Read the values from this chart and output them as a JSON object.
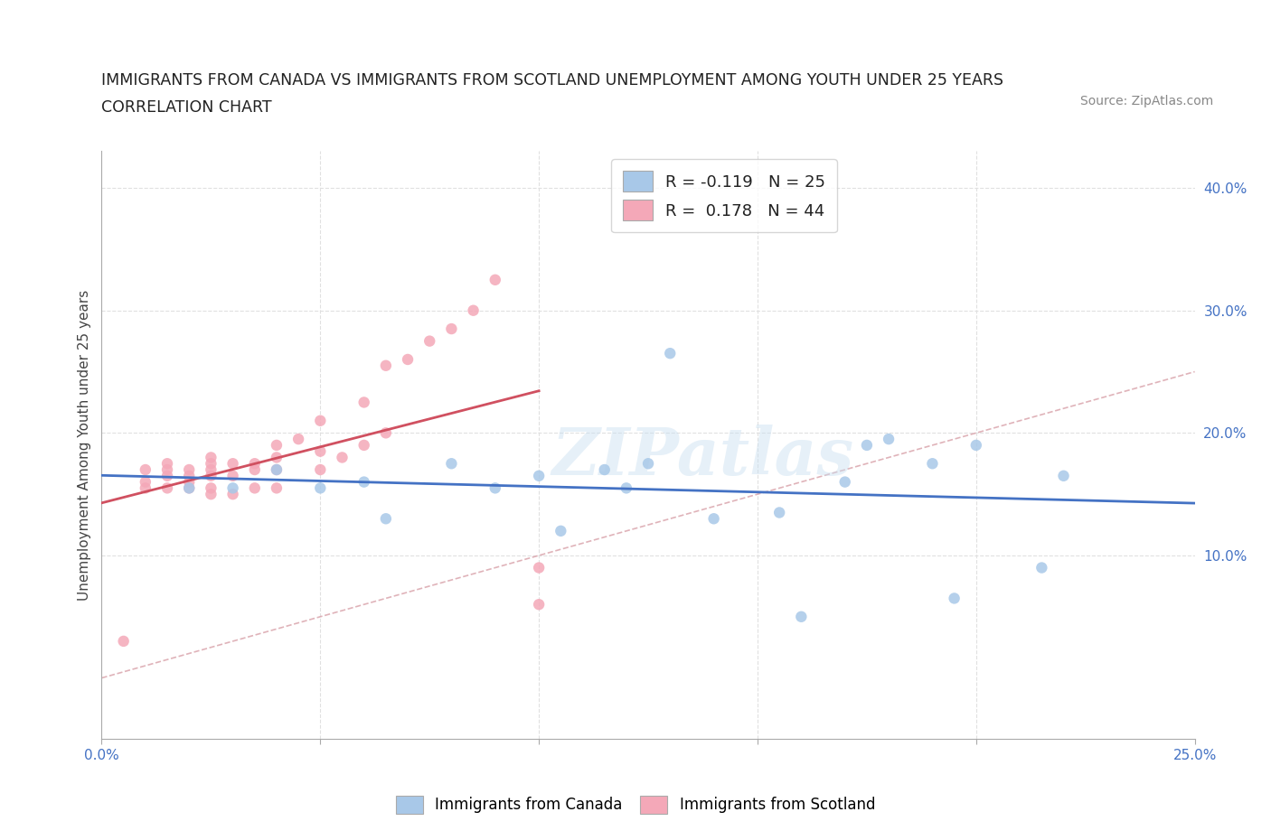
{
  "title_line1": "IMMIGRANTS FROM CANADA VS IMMIGRANTS FROM SCOTLAND UNEMPLOYMENT AMONG YOUTH UNDER 25 YEARS",
  "title_line2": "CORRELATION CHART",
  "source": "Source: ZipAtlas.com",
  "ylabel": "Unemployment Among Youth under 25 years",
  "xlim": [
    0.0,
    0.25
  ],
  "ylim": [
    -0.05,
    0.43
  ],
  "xticks": [
    0.0,
    0.05,
    0.1,
    0.15,
    0.2,
    0.25
  ],
  "xtick_labels_show": [
    true,
    false,
    false,
    false,
    false,
    true
  ],
  "xtick_labels": [
    "0.0%",
    "",
    "",
    "",
    "",
    "25.0%"
  ],
  "yticks_right": [
    0.1,
    0.2,
    0.3,
    0.4
  ],
  "ytick_labels_right": [
    "10.0%",
    "20.0%",
    "30.0%",
    "40.0%"
  ],
  "canada_color": "#a8c8e8",
  "scotland_color": "#f4a8b8",
  "canada_trend_color": "#4472c4",
  "scotland_trend_color": "#d05060",
  "diag_color": "#e0a0a8",
  "canada_R": -0.119,
  "canada_N": 25,
  "scotland_R": 0.178,
  "scotland_N": 44,
  "canada_x": [
    0.02,
    0.03,
    0.04,
    0.05,
    0.06,
    0.065,
    0.08,
    0.09,
    0.1,
    0.105,
    0.115,
    0.12,
    0.125,
    0.13,
    0.14,
    0.155,
    0.16,
    0.17,
    0.175,
    0.18,
    0.19,
    0.195,
    0.2,
    0.215,
    0.22
  ],
  "canada_y": [
    0.155,
    0.155,
    0.17,
    0.155,
    0.16,
    0.13,
    0.175,
    0.155,
    0.165,
    0.12,
    0.17,
    0.155,
    0.175,
    0.265,
    0.13,
    0.135,
    0.05,
    0.16,
    0.19,
    0.195,
    0.175,
    0.065,
    0.19,
    0.09,
    0.165
  ],
  "scotland_x": [
    0.005,
    0.01,
    0.01,
    0.01,
    0.015,
    0.015,
    0.015,
    0.015,
    0.02,
    0.02,
    0.02,
    0.02,
    0.025,
    0.025,
    0.025,
    0.025,
    0.025,
    0.025,
    0.03,
    0.03,
    0.03,
    0.035,
    0.035,
    0.035,
    0.04,
    0.04,
    0.04,
    0.04,
    0.045,
    0.05,
    0.05,
    0.05,
    0.055,
    0.06,
    0.06,
    0.065,
    0.065,
    0.07,
    0.075,
    0.08,
    0.085,
    0.09,
    0.1,
    0.1
  ],
  "scotland_y": [
    0.03,
    0.155,
    0.16,
    0.17,
    0.155,
    0.165,
    0.17,
    0.175,
    0.155,
    0.16,
    0.165,
    0.17,
    0.15,
    0.155,
    0.165,
    0.17,
    0.175,
    0.18,
    0.15,
    0.165,
    0.175,
    0.155,
    0.17,
    0.175,
    0.155,
    0.17,
    0.18,
    0.19,
    0.195,
    0.17,
    0.185,
    0.21,
    0.18,
    0.19,
    0.225,
    0.2,
    0.255,
    0.26,
    0.275,
    0.285,
    0.3,
    0.325,
    0.06,
    0.09
  ],
  "watermark_text": "ZIPatlas",
  "background_color": "#ffffff",
  "grid_color": "#e0e0e0",
  "grid_style": "--"
}
